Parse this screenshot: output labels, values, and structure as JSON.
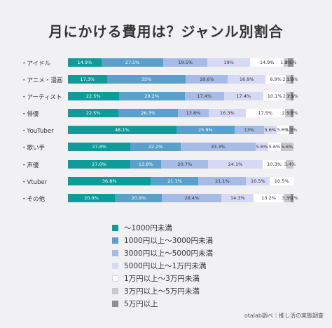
{
  "chart_data": {
    "type": "bar",
    "orientation": "horizontal",
    "stacked": true,
    "percent": true,
    "title": "月にかけるᐃ費用は？ジャンル別割合",
    "categories": [
      "・アイドル",
      "・アニメ・漫画",
      "・アーティスト",
      "・俳優",
      "・YouTuber",
      "・歌い手",
      "・声優",
      "・Vtuber",
      "・その他"
    ],
    "series": [
      {
        "name": "〜1000円未満",
        "color": "#0e9b99",
        "values": [
          14.9,
          17.3,
          22.5,
          22.5,
          48.1,
          27.8,
          27.6,
          36.8,
          20.9
        ]
      },
      {
        "name": "1000円以上〜3000円未満",
        "color": "#5aa0ca",
        "values": [
          27.5,
          35,
          29.2,
          26.3,
          25.9,
          22.2,
          13.8,
          21.1,
          20.9
        ]
      },
      {
        "name": "3000円以上〜5000円未満",
        "color": "#a6bce6",
        "values": [
          19.5,
          18.6,
          17.4,
          13.8,
          13,
          33.3,
          20.7,
          21.1,
          26.4
        ]
      },
      {
        "name": "5000円以上〜1万円未満",
        "color": "#d7d8f3",
        "values": [
          19,
          16.9,
          17.4,
          16.3,
          5.6,
          5.6,
          24.1,
          10.5,
          14.3
        ]
      },
      {
        "name": "1万円以上〜3万円未満",
        "color": "#ffffff",
        "values": [
          14.9,
          8.9,
          10.1,
          17.5,
          5.6,
          5.6,
          10.3,
          10.5,
          13.2
        ]
      },
      {
        "name": "3万円以上〜5万円未満",
        "color": "#c8c8cc",
        "values": [
          1.8,
          2.1,
          2.2,
          2.5,
          0,
          5.6,
          3.4,
          0,
          3.3
        ]
      },
      {
        "name": "5万円以上",
        "color": "#8f8f94",
        "values": [
          2.5,
          1.3,
          1.1,
          1.3,
          1.9,
          0,
          0,
          0,
          1.1
        ]
      }
    ],
    "labels": [
      [
        "14.9%",
        "27.5%",
        "19.5%",
        "19%",
        "14.9%",
        "1.8%",
        "2.5%"
      ],
      [
        "17.3%",
        "35%",
        "18.6%",
        "16.9%",
        "8.9%",
        "2.1%",
        "1.3%"
      ],
      [
        "22.5%",
        "29.2%",
        "17.4%",
        "17.4%",
        "10.1%",
        "2.2%",
        "1.1%"
      ],
      [
        "22.5%",
        "26.3%",
        "13.8%",
        "16.3%",
        "17.5%",
        "2.5%",
        "1.3%"
      ],
      [
        "48.1%",
        "25.9%",
        "13%",
        "5.6%",
        "5.6%",
        "",
        "1.9%"
      ],
      [
        "27.8%",
        "22.2%",
        "33.3%",
        "5.6%",
        "5.6%",
        "5.6%",
        ""
      ],
      [
        "27.6%",
        "13.8%",
        "20.7%",
        "24.1%",
        "10.3%",
        "3.4%",
        ""
      ],
      [
        "36.8%",
        "21.1%",
        "21.1%",
        "10.5%",
        "10.5%",
        "",
        ""
      ],
      [
        "20.9%",
        "20.9%",
        "26.4%",
        "14.3%",
        "13.2%",
        "3.3%",
        "1.1%"
      ]
    ],
    "legend_position": "bottom-center"
  },
  "title": "月にかける費用は？ジャンル別割合",
  "source": "otalab調べ｜推し活の実態調査"
}
